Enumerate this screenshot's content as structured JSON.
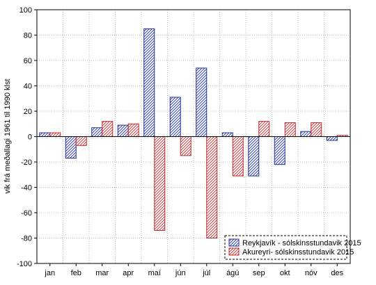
{
  "chart_data": {
    "type": "bar",
    "title": "",
    "xlabel": "",
    "ylabel": "vik frá meðallagi 1961 til 1990 klst",
    "ylim": [
      -100,
      100
    ],
    "yticks": [
      -100,
      -80,
      -60,
      -40,
      -20,
      0,
      20,
      40,
      60,
      80,
      100
    ],
    "grid": true,
    "legend_position": "bottom-right",
    "categories": [
      "jan",
      "feb",
      "mar",
      "apr",
      "maí",
      "jún",
      "júl",
      "ágú",
      "sep",
      "okt",
      "nóv",
      "des"
    ],
    "series": [
      {
        "name": "Reykjavík - sólskinsstundavik 2015",
        "color": "#1f2f9a",
        "values": [
          3,
          -17,
          7,
          9,
          85,
          31,
          54,
          3,
          -31,
          -22,
          4,
          -3
        ]
      },
      {
        "name": "Akureyri- sólskinsstundavik 2015",
        "color": "#c0282d",
        "values": [
          3,
          -7,
          12,
          10,
          -74,
          -15,
          -80,
          -31,
          12,
          11,
          11,
          1
        ]
      }
    ]
  }
}
